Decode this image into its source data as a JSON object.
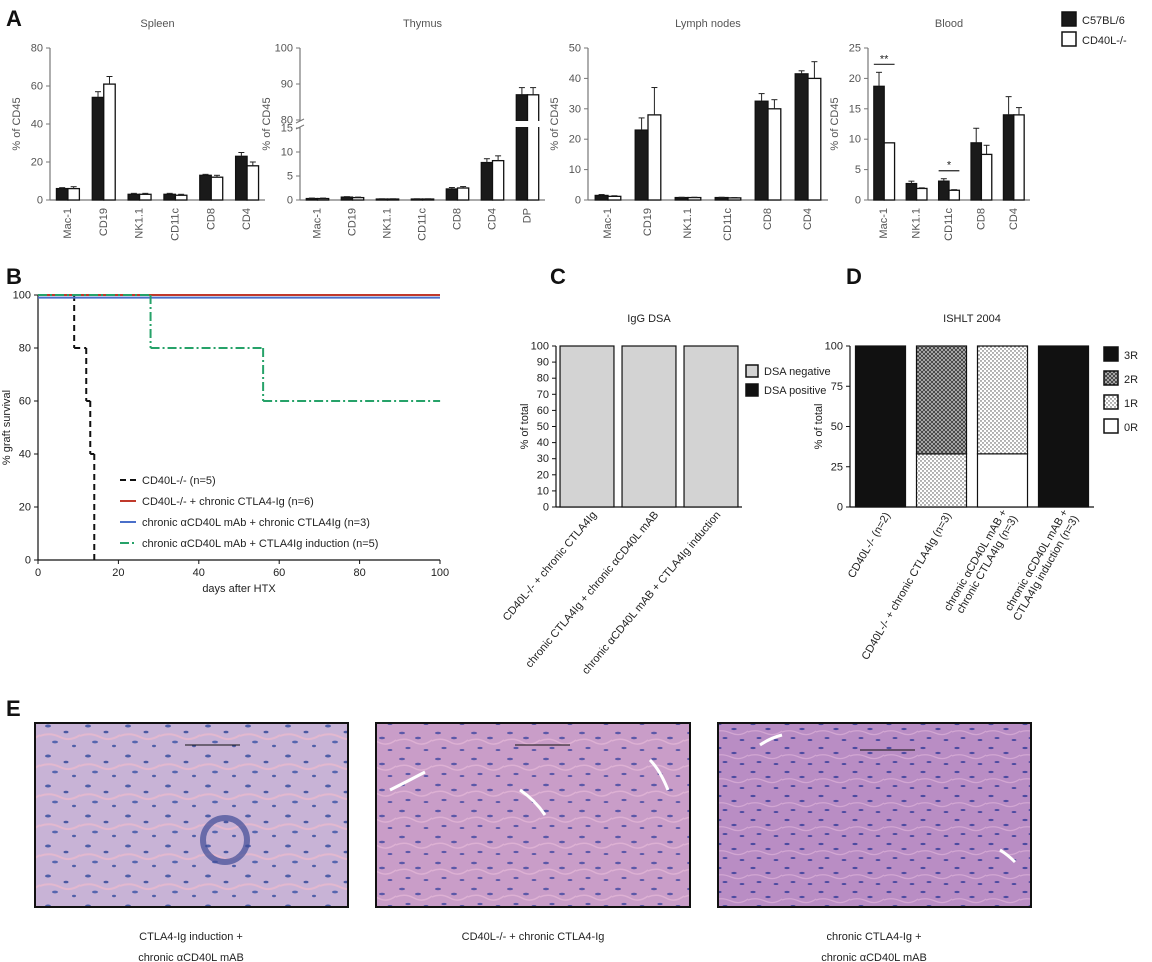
{
  "panel_labels": [
    "A",
    "B",
    "C",
    "D",
    "E"
  ],
  "chart_data": [
    {
      "type": "bar",
      "title": "Spleen",
      "ylabel": "% of CD45",
      "categories": [
        "Mac-1",
        "CD19",
        "NK1.1",
        "CD11c",
        "CD8",
        "CD4"
      ],
      "series": [
        {
          "color": "#1a1a1a",
          "values": [
            6,
            54,
            3,
            3,
            13,
            23
          ],
          "errors": [
            0.5,
            3,
            0.5,
            0.5,
            0.5,
            2
          ]
        },
        {
          "color": "#ffffff",
          "values": [
            6,
            61,
            3,
            2.5,
            12,
            18
          ],
          "errors": [
            1,
            4,
            0.5,
            0.5,
            1,
            2
          ]
        }
      ],
      "ylim": [
        0,
        80
      ],
      "yticks": [
        0,
        20,
        40,
        60,
        80
      ]
    },
    {
      "type": "bar",
      "title": "Thymus",
      "ylabel": "% of CD45",
      "categories": [
        "Mac-1",
        "CD19",
        "NK1.1",
        "CD11c",
        "CD8",
        "CD4",
        "DP"
      ],
      "series": [
        {
          "color": "#1a1a1a",
          "values": [
            0.3,
            0.6,
            0.2,
            0.2,
            2.3,
            7.8,
            87
          ],
          "errors": [
            0.1,
            0.1,
            0.05,
            0.05,
            0.3,
            0.8,
            2
          ]
        },
        {
          "color": "#ffffff",
          "values": [
            0.3,
            0.5,
            0.2,
            0.2,
            2.5,
            8.2,
            87
          ],
          "errors": [
            0.1,
            0.1,
            0.05,
            0.05,
            0.3,
            1,
            2
          ]
        }
      ],
      "ylim": [
        0,
        100
      ],
      "ybreak": [
        15,
        80
      ],
      "yticks": [
        0,
        5,
        10,
        15,
        80,
        90,
        100
      ]
    },
    {
      "type": "bar",
      "title": "Lymph nodes",
      "ylabel": "% of CD45",
      "categories": [
        "Mac-1",
        "CD19",
        "NK1.1",
        "CD11c",
        "CD8",
        "CD4"
      ],
      "series": [
        {
          "color": "#1a1a1a",
          "values": [
            1.5,
            23,
            0.8,
            0.8,
            32.5,
            41.5
          ],
          "errors": [
            0.3,
            4,
            0.1,
            0.1,
            2.5,
            1
          ]
        },
        {
          "color": "#ffffff",
          "values": [
            1.2,
            28,
            0.8,
            0.7,
            30,
            40
          ],
          "errors": [
            0.2,
            9,
            0.1,
            0.1,
            3,
            5.5
          ]
        }
      ],
      "ylim": [
        0,
        50
      ],
      "yticks": [
        0,
        10,
        20,
        30,
        40,
        50
      ]
    },
    {
      "type": "bar",
      "title": "Blood",
      "ylabel": "% of CD45",
      "categories": [
        "Mac-1",
        "NK1.1",
        "CD11c",
        "CD8",
        "CD4"
      ],
      "series": [
        {
          "name": "C57BL/6",
          "color": "#1a1a1a",
          "values": [
            18.7,
            2.7,
            3.1,
            9.4,
            14
          ],
          "errors": [
            2.3,
            0.4,
            0.4,
            2.4,
            3
          ]
        },
        {
          "name": "CD40L-/-",
          "color": "#ffffff",
          "values": [
            9.4,
            1.9,
            1.6,
            7.5,
            14
          ],
          "errors": [
            0,
            0.1,
            0.1,
            1.5,
            1.2
          ]
        }
      ],
      "significance": [
        "**",
        null,
        "*",
        null,
        null
      ],
      "ylim": [
        0,
        25
      ],
      "yticks": [
        0,
        5,
        10,
        15,
        20,
        25
      ]
    },
    {
      "type": "line",
      "step": true,
      "xlabel": "days after HTX",
      "ylabel": "% graft survival",
      "series": [
        {
          "name": "CD40L-/- (n=5)",
          "color": "#111111",
          "line_style": "dashed",
          "x": [
            0,
            9,
            12,
            13,
            14
          ],
          "values": [
            100,
            80,
            60,
            40,
            0
          ]
        },
        {
          "name": "CD40L-/- + chronic CTLA4-Ig (n=6)",
          "color": "#c0392b",
          "line_style": "solid",
          "x": [
            0,
            100
          ],
          "values": [
            100,
            100
          ]
        },
        {
          "name": "chronic αCD40L mAb + chronic CTLA4Ig (n=3)",
          "color": "#4a6fc9",
          "line_style": "solid",
          "x": [
            0,
            100
          ],
          "values": [
            99,
            99
          ]
        },
        {
          "name": "chronic αCD40L mAb + CTLA4Ig induction (n=5)",
          "color": "#26a269",
          "line_style": "dashdot",
          "x": [
            0,
            28,
            56,
            100
          ],
          "values": [
            100,
            80,
            60,
            60
          ]
        }
      ],
      "xlim": [
        0,
        100
      ],
      "xticks": [
        0,
        20,
        40,
        60,
        80,
        100
      ],
      "ylim": [
        0,
        100
      ],
      "yticks": [
        0,
        20,
        40,
        60,
        80,
        100
      ]
    },
    {
      "type": "bar",
      "stacked": true,
      "title": "IgG DSA",
      "ylabel": "% of total",
      "categories": [
        "CD40L-/- + chronic CTLA4Ig",
        "chronic CTLA4Ig + chronic αCD40L mAB",
        "chronic αCD40L mAB + CTLA4Ig induction"
      ],
      "series": [
        {
          "name": "DSA positive",
          "color": "#111111",
          "values": [
            0,
            0,
            0
          ]
        },
        {
          "name": "DSA negative",
          "color": "#d3d3d3",
          "values": [
            100,
            100,
            100
          ]
        }
      ],
      "ylim": [
        0,
        100
      ],
      "yticks": [
        0,
        10,
        20,
        30,
        40,
        50,
        60,
        70,
        80,
        90,
        100
      ]
    },
    {
      "type": "bar",
      "stacked": true,
      "title": "ISHLT 2004",
      "ylabel": "% of total",
      "categories": [
        [
          "CD40L-/- (n=2)"
        ],
        [
          "CD40L-/- + chronic CTLA4Ig (n=3)"
        ],
        [
          "chronic αCD40L mAB +",
          "chronic CTLA4Ig (n=3)"
        ],
        [
          "chronic αCD40L mAB +",
          "CTLA4Ig induction (n=3)"
        ]
      ],
      "series": [
        {
          "name": "0R",
          "color": "#ffffff",
          "values": [
            0,
            0,
            33,
            0
          ]
        },
        {
          "name": "1R",
          "color": "#ffffff",
          "pattern": "dots",
          "values": [
            0,
            33,
            67,
            0
          ]
        },
        {
          "name": "2R",
          "color": "#555555",
          "pattern": "crosshatch",
          "values": [
            0,
            67,
            0,
            0
          ]
        },
        {
          "name": "3R",
          "color": "#111111",
          "values": [
            100,
            0,
            0,
            100
          ]
        }
      ],
      "ylim": [
        0,
        100
      ],
      "yticks": [
        0,
        25,
        50,
        75,
        100
      ]
    }
  ],
  "images": [
    {
      "caption": [
        "CTLA4-Ig induction +",
        "chronic αCD40L mAB"
      ]
    },
    {
      "caption": [
        "CD40L-/- + chronic CTLA4-Ig"
      ]
    },
    {
      "caption": [
        "chronic CTLA4-Ig +",
        "chronic αCD40L mAB"
      ]
    }
  ]
}
